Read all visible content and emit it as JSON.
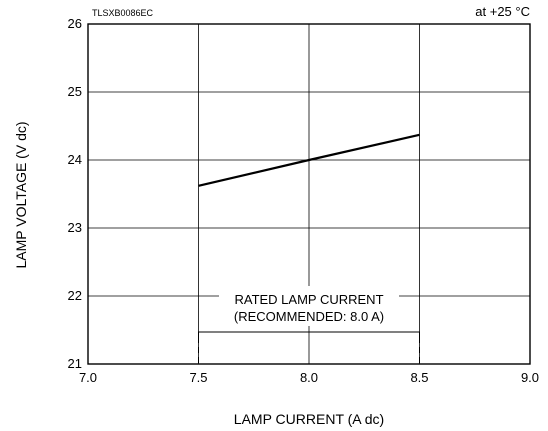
{
  "chart_data": {
    "type": "line",
    "code_label": "TLSXB0086EC",
    "condition_label": "at +25 °C",
    "xlabel": "LAMP CURRENT (A dc)",
    "ylabel": "LAMP VOLTAGE (V dc)",
    "xlim": [
      7.0,
      9.0
    ],
    "ylim": [
      21,
      26
    ],
    "xticks": [
      "7.0",
      "7.5",
      "8.0",
      "8.5",
      "9.0"
    ],
    "yticks": [
      "21",
      "22",
      "23",
      "24",
      "25",
      "26"
    ],
    "grid": true,
    "series": [
      {
        "x": [
          7.5,
          8.0,
          8.5
        ],
        "y": [
          23.62,
          24.0,
          24.37
        ]
      }
    ],
    "annotation": {
      "line1": "RATED LAMP CURRENT",
      "line2": "(RECOMMENDED: 8.0 A)",
      "range": [
        7.5,
        8.5
      ]
    }
  }
}
